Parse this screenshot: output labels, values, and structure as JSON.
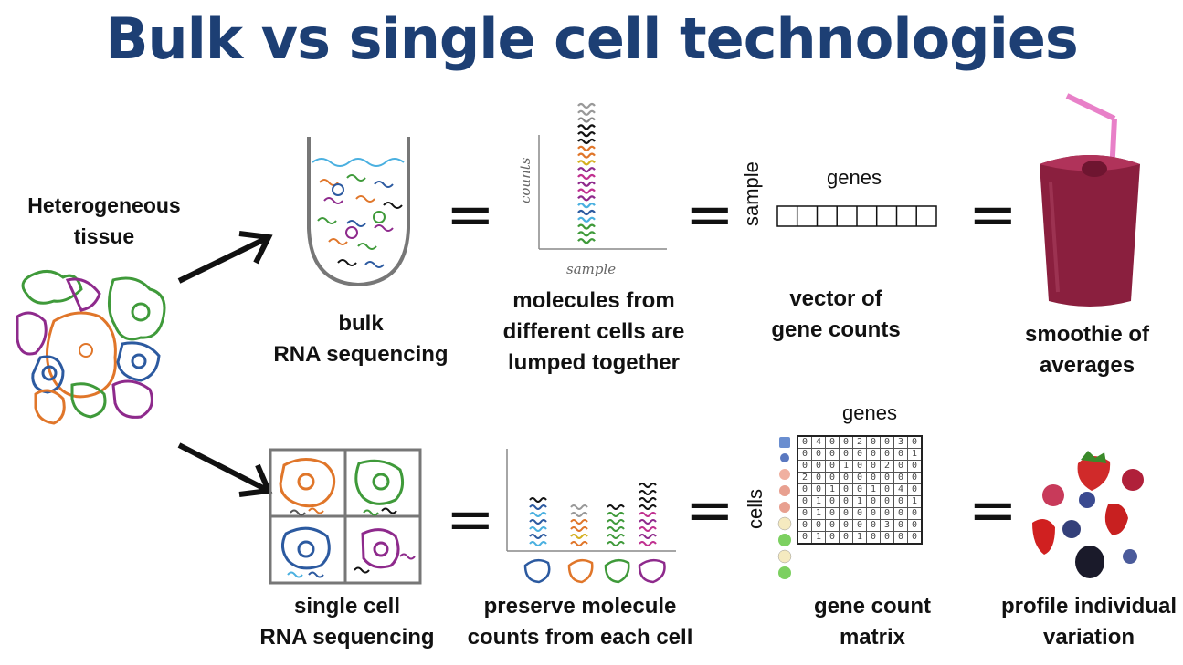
{
  "title": "Bulk vs single cell technologies",
  "tissue_label": [
    "Heterogeneous",
    "tissue"
  ],
  "bulk": {
    "caption": [
      "bulk",
      "RNA sequencing"
    ],
    "molecules_caption": [
      "molecules from",
      "different cells are",
      "lumped together"
    ],
    "vector_caption": [
      "vector of",
      "gene counts"
    ],
    "smoothie_caption": [
      "smoothie of",
      "averages"
    ],
    "axis_y": "counts",
    "axis_x": "sample",
    "vector_cols_label": "genes",
    "vector_rows_label": "sample"
  },
  "single": {
    "caption": [
      "single cell",
      "RNA sequencing"
    ],
    "molecules_caption": [
      "preserve molecule",
      "counts from each cell"
    ],
    "matrix_caption": [
      "gene count",
      "matrix"
    ],
    "fruit_caption": [
      "profile individual",
      "variation"
    ],
    "matrix_cols_label": "genes",
    "matrix_rows_label": "cells",
    "matrix": [
      [
        "0",
        "4",
        "0",
        "0",
        "2",
        "0",
        "0",
        "3",
        "0"
      ],
      [
        "0",
        "0",
        "0",
        "0",
        "0",
        "0",
        "0",
        "0",
        "1"
      ],
      [
        "0",
        "0",
        "0",
        "1",
        "0",
        "0",
        "2",
        "0",
        "0"
      ],
      [
        "2",
        "0",
        "0",
        "0",
        "0",
        "0",
        "0",
        "0",
        "0"
      ],
      [
        "0",
        "0",
        "1",
        "0",
        "0",
        "1",
        "0",
        "4",
        "0"
      ],
      [
        "0",
        "1",
        "0",
        "0",
        "1",
        "0",
        "0",
        "0",
        "1"
      ],
      [
        "0",
        "1",
        "0",
        "0",
        "0",
        "0",
        "0",
        "0",
        "0"
      ],
      [
        "0",
        "0",
        "0",
        "0",
        "0",
        "0",
        "3",
        "0",
        "0"
      ],
      [
        "0",
        "1",
        "0",
        "0",
        "1",
        "0",
        "0",
        "0",
        "0"
      ]
    ]
  },
  "equals": "=",
  "colors": {
    "title": "#1d3f74",
    "cell_green": "#3f9a3a",
    "cell_orange": "#e0762a",
    "cell_blue": "#2c5aa0",
    "cell_purple": "#8e2a8c",
    "smoothie": "#8a1f3e",
    "straw": "#e880c8"
  }
}
